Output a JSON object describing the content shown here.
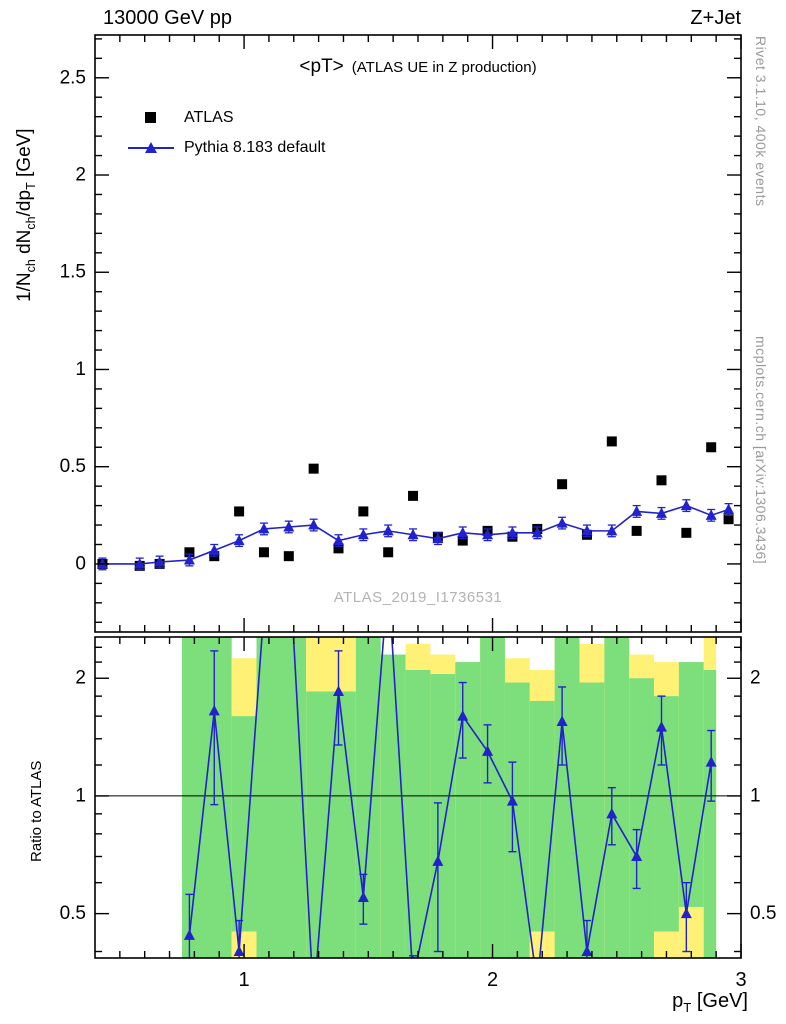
{
  "header": {
    "left": "13000 GeV pp",
    "right": "Z+Jet"
  },
  "title": {
    "main": "<pT>",
    "annotation": "(ATLAS UE in Z production)"
  },
  "watermark": "ATLAS_2019_I1736531",
  "side_notes": {
    "rivet": "Rivet 3.1.10,  400k events",
    "mcplots": "mcplots.cern.ch [arXiv:1306.3436]"
  },
  "labels": {
    "y_main_parts": [
      {
        "t": "1/N"
      },
      {
        "t": "ch",
        "sub": true
      },
      {
        "t": " dN"
      },
      {
        "t": "ch",
        "sub": true
      },
      {
        "t": "/dp"
      },
      {
        "t": "T",
        "sub": true
      },
      {
        "t": " [GeV]"
      }
    ],
    "ratio_y": "Ratio to ATLAS",
    "x_parts": [
      {
        "t": "p"
      },
      {
        "t": "T",
        "sub": true
      },
      {
        "t": " [GeV]"
      }
    ]
  },
  "legend": [
    {
      "label": "ATLAS",
      "marker": "square",
      "color": "#000000"
    },
    {
      "label": "Pythia 8.183 default",
      "marker": "triangle-line",
      "color": "#2222cc"
    }
  ],
  "chart_data": {
    "type": "scatter",
    "title": "<pT> (ATLAS UE in Z production)",
    "colors": {
      "band_yellow": "#fff176",
      "band_green": "#7cdf7c",
      "mc": "#2222cc",
      "data": "#000000",
      "ref_line": "#000000"
    },
    "x_axis": {
      "lim": [
        0.4,
        3.0
      ],
      "major": [
        {
          "v": 1,
          "l": "1"
        },
        {
          "v": 2,
          "l": "2"
        },
        {
          "v": 3,
          "l": "3"
        }
      ],
      "minor_from": 0.5,
      "minor_to": 2.9,
      "minor_step": 0.1
    },
    "main_panel": {
      "ylim": [
        -0.35,
        2.72
      ],
      "ymajor": [
        {
          "v": 0,
          "l": "0"
        },
        {
          "v": 0.5,
          "l": "0.5"
        },
        {
          "v": 1,
          "l": "1"
        },
        {
          "v": 1.5,
          "l": "1.5"
        },
        {
          "v": 2,
          "l": "2"
        },
        {
          "v": 2.5,
          "l": "2.5"
        }
      ],
      "series": [
        {
          "name": "ATLAS",
          "marker": "square",
          "color": "#000000",
          "line": false,
          "yerr": 0.02,
          "x": [
            0.43,
            0.58,
            0.66,
            0.78,
            0.88,
            0.98,
            1.08,
            1.18,
            1.28,
            1.38,
            1.48,
            1.58,
            1.68,
            1.78,
            1.88,
            1.98,
            2.08,
            2.18,
            2.28,
            2.38,
            2.48,
            2.58,
            2.68,
            2.78,
            2.88,
            2.95
          ],
          "y": [
            0.0,
            -0.01,
            0.0,
            0.06,
            0.04,
            0.27,
            0.06,
            0.04,
            0.49,
            0.08,
            0.27,
            0.06,
            0.35,
            0.14,
            0.12,
            0.17,
            0.14,
            0.18,
            0.41,
            0.15,
            0.63,
            0.17,
            0.43,
            0.16,
            0.6,
            0.23
          ]
        },
        {
          "name": "Pythia 8.183 default",
          "marker": "triangle",
          "color": "#2222cc",
          "line": true,
          "yerr": 0.03,
          "x": [
            0.43,
            0.58,
            0.66,
            0.78,
            0.88,
            0.98,
            1.08,
            1.18,
            1.28,
            1.38,
            1.48,
            1.58,
            1.68,
            1.78,
            1.88,
            1.98,
            2.08,
            2.18,
            2.28,
            2.38,
            2.48,
            2.58,
            2.68,
            2.78,
            2.88,
            2.95
          ],
          "y": [
            0.0,
            0.0,
            0.01,
            0.02,
            0.07,
            0.12,
            0.18,
            0.19,
            0.2,
            0.12,
            0.15,
            0.17,
            0.15,
            0.13,
            0.16,
            0.15,
            0.16,
            0.16,
            0.21,
            0.17,
            0.17,
            0.27,
            0.26,
            0.3,
            0.25,
            0.28
          ]
        }
      ]
    },
    "ratio_panel": {
      "ylog_lim": [
        0.385,
        2.55
      ],
      "ymajor": [
        {
          "v": 0.5,
          "l": "0.5"
        },
        {
          "v": 1,
          "l": "1"
        },
        {
          "v": 2,
          "l": "2"
        }
      ],
      "yminor": [
        0.4,
        0.6,
        0.7,
        0.8,
        0.9,
        1.2,
        1.4,
        1.6,
        1.8,
        2.2,
        2.4
      ],
      "ref_line": 1,
      "series": {
        "name": "Pythia 8.183 default / ATLAS",
        "color": "#2222cc",
        "marker": "triangle",
        "x": [
          0.78,
          0.88,
          0.98,
          1.08,
          1.18,
          1.28,
          1.38,
          1.48,
          1.58,
          1.68,
          1.78,
          1.88,
          1.98,
          2.08,
          2.18,
          2.28,
          2.38,
          2.48,
          2.58,
          2.68,
          2.78,
          2.88
        ],
        "y": [
          0.44,
          1.65,
          0.4,
          3.0,
          4.2,
          0.3,
          1.85,
          0.55,
          3.6,
          0.34,
          0.68,
          1.6,
          1.3,
          0.97,
          0.33,
          1.55,
          0.4,
          0.9,
          0.7,
          1.5,
          0.5,
          1.22
        ],
        "yerr": [
          0.12,
          0.7,
          0.08,
          0,
          0,
          0,
          0.5,
          0.08,
          0,
          0.05,
          0.28,
          0.35,
          0.22,
          0.25,
          0.05,
          0.35,
          0.08,
          0.15,
          0.12,
          0.3,
          0.1,
          0.25
        ]
      },
      "bands": [
        {
          "x0": 0.75,
          "x1": 0.95,
          "yellow": [
            0.385,
            2.55
          ],
          "green": [
            0.385,
            2.55
          ]
        },
        {
          "x0": 0.95,
          "x1": 1.05,
          "yellow": [
            0.385,
            2.25
          ],
          "green": [
            0.45,
            1.6
          ]
        },
        {
          "x0": 1.05,
          "x1": 1.25,
          "yellow": [
            0.385,
            2.55
          ],
          "green": [
            0.385,
            2.55
          ]
        },
        {
          "x0": 1.25,
          "x1": 1.45,
          "yellow": [
            0.385,
            2.55
          ],
          "green": [
            0.385,
            1.85
          ]
        },
        {
          "x0": 1.45,
          "x1": 1.55,
          "yellow": [
            0.385,
            2.55
          ],
          "green": [
            0.385,
            2.55
          ]
        },
        {
          "x0": 1.55,
          "x1": 1.65,
          "yellow": [
            0.385,
            2.3
          ],
          "green": [
            0.385,
            2.3
          ]
        },
        {
          "x0": 1.65,
          "x1": 1.75,
          "yellow": [
            0.385,
            2.45
          ],
          "green": [
            0.385,
            2.1
          ]
        },
        {
          "x0": 1.75,
          "x1": 1.85,
          "yellow": [
            0.385,
            2.3
          ],
          "green": [
            0.385,
            2.05
          ]
        },
        {
          "x0": 1.85,
          "x1": 1.95,
          "yellow": [
            0.385,
            2.2
          ],
          "green": [
            0.385,
            2.2
          ]
        },
        {
          "x0": 1.95,
          "x1": 2.05,
          "yellow": [
            0.385,
            2.55
          ],
          "green": [
            0.385,
            2.55
          ]
        },
        {
          "x0": 2.05,
          "x1": 2.15,
          "yellow": [
            0.385,
            2.25
          ],
          "green": [
            0.385,
            1.95
          ]
        },
        {
          "x0": 2.15,
          "x1": 2.25,
          "yellow": [
            0.34,
            2.1
          ],
          "green": [
            0.45,
            1.75
          ]
        },
        {
          "x0": 2.25,
          "x1": 2.35,
          "yellow": [
            0.385,
            2.55
          ],
          "green": [
            0.385,
            2.55
          ]
        },
        {
          "x0": 2.35,
          "x1": 2.45,
          "yellow": [
            0.385,
            2.45
          ],
          "green": [
            0.385,
            1.95
          ]
        },
        {
          "x0": 2.45,
          "x1": 2.55,
          "yellow": [
            0.385,
            2.55
          ],
          "green": [
            0.385,
            2.55
          ]
        },
        {
          "x0": 2.55,
          "x1": 2.65,
          "yellow": [
            0.385,
            2.3
          ],
          "green": [
            0.385,
            2.0
          ]
        },
        {
          "x0": 2.65,
          "x1": 2.75,
          "yellow": [
            0.385,
            2.2
          ],
          "green": [
            0.45,
            1.8
          ]
        },
        {
          "x0": 2.75,
          "x1": 2.85,
          "yellow": [
            0.385,
            2.2
          ],
          "green": [
            0.52,
            2.2
          ]
        },
        {
          "x0": 2.85,
          "x1": 2.9,
          "yellow": [
            0.385,
            2.55
          ],
          "green": [
            0.385,
            2.1
          ]
        }
      ]
    }
  }
}
